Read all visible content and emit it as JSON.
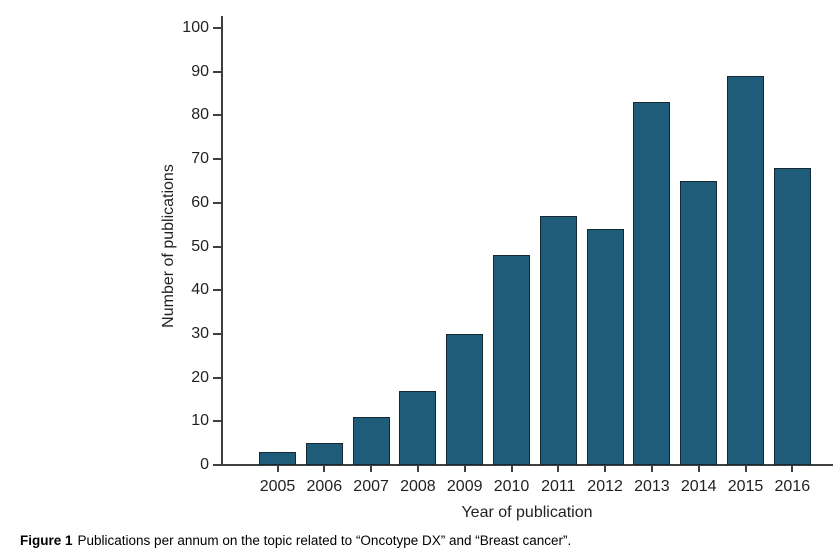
{
  "figure": {
    "caption_label": "Figure 1",
    "caption_text": "Publications per annum on the topic related to “Oncotype DX” and “Breast cancer”."
  },
  "chart_data": {
    "type": "bar",
    "title": "",
    "categories": [
      "2005",
      "2006",
      "2007",
      "2008",
      "2009",
      "2010",
      "2011",
      "2012",
      "2013",
      "2014",
      "2015",
      "2016"
    ],
    "values": [
      3,
      5,
      11,
      17,
      30,
      48,
      57,
      54,
      83,
      65,
      89,
      68
    ],
    "xlabel": "Year of publication",
    "ylabel": "Number of publications",
    "ylim": [
      0,
      100
    ],
    "ytick_step": 10,
    "yticks": [
      0,
      10,
      20,
      30,
      40,
      50,
      60,
      70,
      80,
      90,
      100
    ],
    "grid": false,
    "legend": "none",
    "bar_fill_color": "#1e5c79",
    "bar_border_color": "#162a36",
    "axis_color": "#3f3f3f",
    "text_color": "#231f20"
  }
}
